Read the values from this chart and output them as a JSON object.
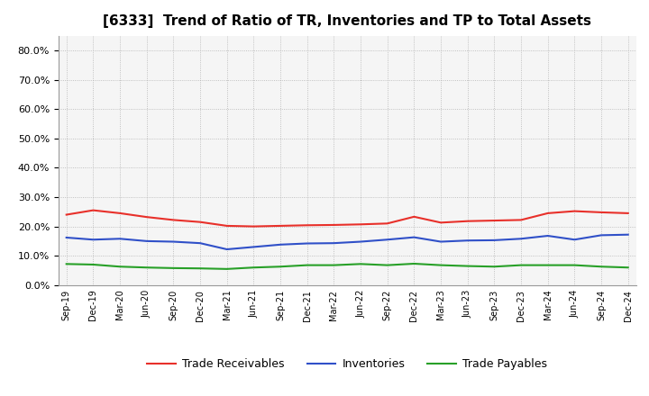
{
  "title": "[6333]  Trend of Ratio of TR, Inventories and TP to Total Assets",
  "x_labels": [
    "Sep-19",
    "Dec-19",
    "Mar-20",
    "Jun-20",
    "Sep-20",
    "Dec-20",
    "Mar-21",
    "Jun-21",
    "Sep-21",
    "Dec-21",
    "Mar-22",
    "Jun-22",
    "Sep-22",
    "Dec-22",
    "Mar-23",
    "Jun-23",
    "Sep-23",
    "Dec-23",
    "Mar-24",
    "Jun-24",
    "Sep-24",
    "Dec-24"
  ],
  "trade_receivables": [
    0.24,
    0.255,
    0.245,
    0.232,
    0.222,
    0.215,
    0.202,
    0.2,
    0.202,
    0.204,
    0.205,
    0.207,
    0.21,
    0.233,
    0.213,
    0.218,
    0.22,
    0.222,
    0.245,
    0.252,
    0.248,
    0.245
  ],
  "inventories": [
    0.162,
    0.155,
    0.158,
    0.15,
    0.148,
    0.143,
    0.122,
    0.13,
    0.138,
    0.142,
    0.143,
    0.148,
    0.155,
    0.163,
    0.148,
    0.152,
    0.153,
    0.158,
    0.168,
    0.155,
    0.17,
    0.172
  ],
  "trade_payables": [
    0.072,
    0.07,
    0.063,
    0.06,
    0.058,
    0.057,
    0.055,
    0.06,
    0.063,
    0.068,
    0.068,
    0.072,
    0.068,
    0.073,
    0.068,
    0.065,
    0.063,
    0.068,
    0.068,
    0.068,
    0.063,
    0.06
  ],
  "tr_color": "#e8302a",
  "inv_color": "#3050c8",
  "tp_color": "#28a028",
  "ylim": [
    0.0,
    0.85
  ],
  "yticks": [
    0.0,
    0.1,
    0.2,
    0.3,
    0.4,
    0.5,
    0.6,
    0.7,
    0.8
  ],
  "background_color": "#ffffff",
  "plot_bg_color": "#f5f5f5",
  "grid_color": "#aaaaaa",
  "title_fontsize": 11,
  "legend_fontsize": 9,
  "tick_fontsize": 8,
  "xtick_fontsize": 7
}
